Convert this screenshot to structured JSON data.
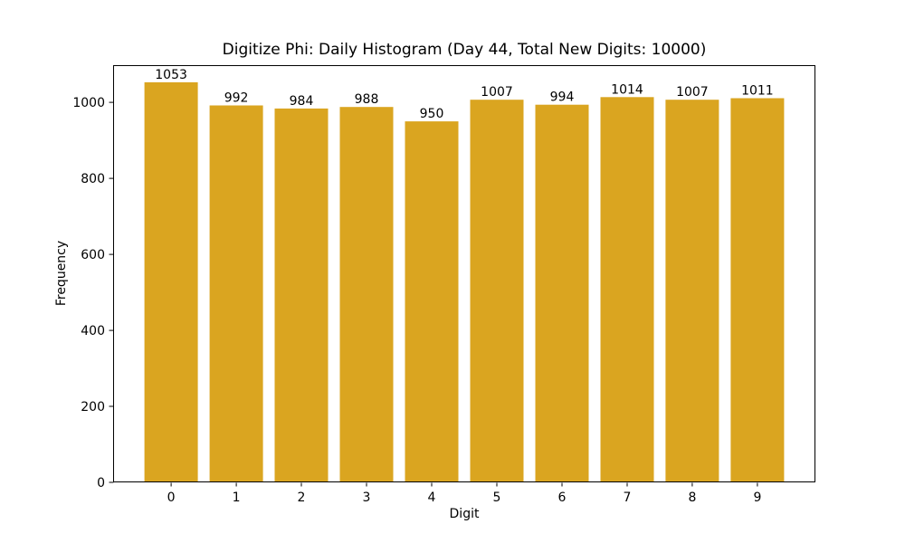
{
  "chart_data": {
    "type": "bar",
    "title": "Digitize Phi: Daily Histogram (Day 44, Total New Digits: 10000)",
    "xlabel": "Digit",
    "ylabel": "Frequency",
    "categories": [
      "0",
      "1",
      "2",
      "3",
      "4",
      "5",
      "6",
      "7",
      "8",
      "9"
    ],
    "values": [
      1053,
      992,
      984,
      988,
      950,
      1007,
      994,
      1014,
      1007,
      1011
    ],
    "bar_labels": [
      "1053",
      "992",
      "984",
      "988",
      "950",
      "1007",
      "994",
      "1014",
      "1007",
      "1011"
    ],
    "yticks": [
      0,
      200,
      400,
      600,
      800,
      1000
    ],
    "ytick_labels": [
      "0",
      "200",
      "400",
      "600",
      "800",
      "1000"
    ],
    "ylim": [
      0,
      1098
    ],
    "grid": false,
    "legend_position": "none",
    "bar_color": "#DAA520",
    "axis_color": "#000000",
    "text_color": "#000000",
    "background_color": "#ffffff"
  }
}
